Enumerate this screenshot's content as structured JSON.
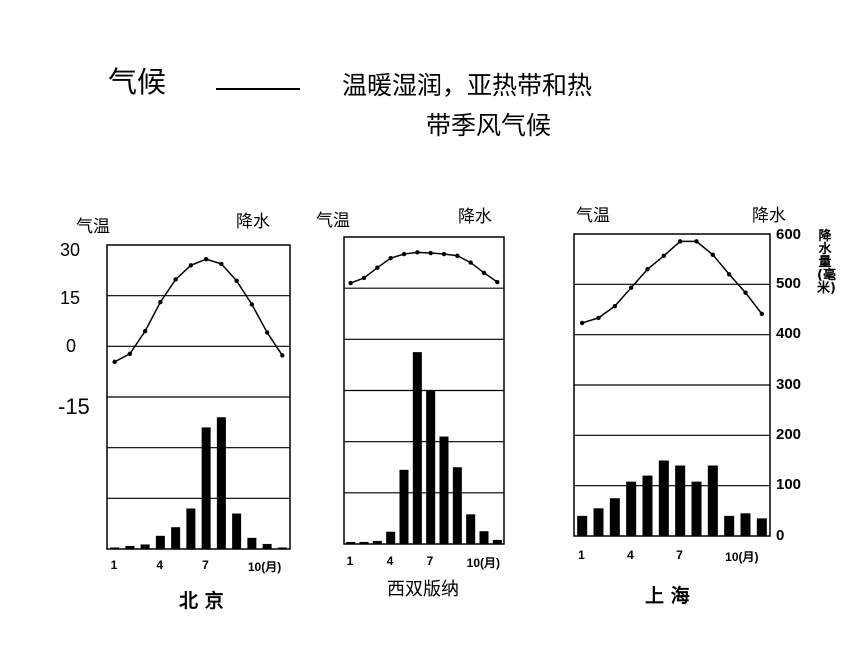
{
  "title": {
    "main": "气候",
    "subtitle_line1": "温暖湿润，亚热带和热",
    "subtitle_line2": "带季风气候"
  },
  "axis_labels": {
    "temp": "气温",
    "precip": "降水",
    "precip_unit": "降水量(毫米)"
  },
  "left_ticks": [
    "30",
    "15",
    "0",
    "-15"
  ],
  "right_ticks": [
    "600",
    "500",
    "400",
    "300",
    "200",
    "100",
    "0"
  ],
  "month_ticks": [
    "1",
    "4",
    "7",
    "10(月)"
  ],
  "cities": [
    "北 京",
    "西双版纳",
    "上 海"
  ],
  "chart_data": [
    {
      "type": "bar",
      "title": "北 京",
      "x": [
        1,
        2,
        3,
        4,
        5,
        6,
        7,
        8,
        9,
        10,
        11,
        12
      ],
      "temperature": [
        -4.6,
        -2.2,
        4.5,
        13.1,
        19.8,
        24.0,
        25.8,
        24.4,
        19.4,
        12.4,
        4.1,
        -2.7
      ],
      "precipitation": [
        3,
        6,
        9,
        26,
        43,
        80,
        240,
        260,
        70,
        22,
        10,
        3
      ],
      "xlabel": "",
      "temp_ylim": [
        -15,
        30
      ],
      "precip_ylim": [
        0,
        600
      ],
      "grid": true
    },
    {
      "type": "bar",
      "title": "西双版纳",
      "x": [
        1,
        2,
        3,
        4,
        5,
        6,
        7,
        8,
        9,
        10,
        11,
        12
      ],
      "temperature": [
        16.5,
        18.0,
        21.0,
        23.8,
        25.0,
        25.5,
        25.3,
        25.0,
        24.5,
        22.5,
        19.5,
        16.8
      ],
      "precipitation": [
        4,
        4,
        6,
        24,
        145,
        375,
        300,
        210,
        150,
        58,
        25,
        8
      ],
      "xlabel": "",
      "temp_ylim": [
        -15,
        30
      ],
      "precip_ylim": [
        0,
        600
      ],
      "grid": true
    },
    {
      "type": "bar",
      "title": "上 海",
      "x": [
        1,
        2,
        3,
        4,
        5,
        6,
        7,
        8,
        9,
        10,
        11,
        12
      ],
      "temperature": [
        3.5,
        5.0,
        8.5,
        14.0,
        19.5,
        23.5,
        27.8,
        27.8,
        23.8,
        18.0,
        12.5,
        6.2
      ],
      "precipitation": [
        40,
        55,
        75,
        108,
        120,
        150,
        140,
        108,
        140,
        40,
        45,
        35
      ],
      "xlabel": "",
      "temp_ylim": [
        -15,
        30
      ],
      "precip_ylim": [
        0,
        600
      ],
      "grid": true
    }
  ]
}
